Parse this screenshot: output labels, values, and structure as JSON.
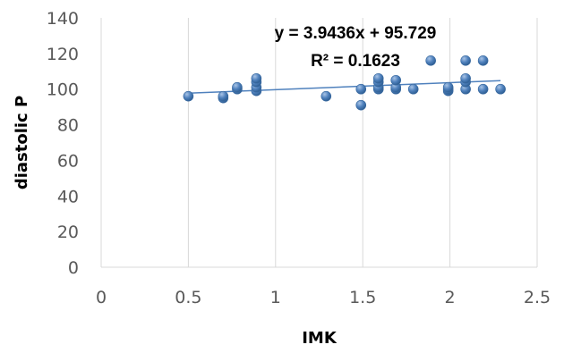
{
  "chart_data": {
    "type": "scatter",
    "xlabel": "IMK",
    "ylabel": "diastolic P",
    "xlim": [
      0,
      2.5
    ],
    "ylim": [
      0,
      140
    ],
    "x_ticks": [
      "0",
      "0.5",
      "1",
      "1.5",
      "2",
      "2.5"
    ],
    "y_ticks": [
      "0",
      "20",
      "40",
      "60",
      "80",
      "100",
      "120",
      "140"
    ],
    "grid": {
      "vertical": true,
      "horizontal": false
    },
    "marker_color": "#4f81bd",
    "trendline_color": "#4f81bd",
    "points": [
      {
        "x": 0.5,
        "y": 96
      },
      {
        "x": 0.7,
        "y": 95
      },
      {
        "x": 0.7,
        "y": 96
      },
      {
        "x": 0.78,
        "y": 100
      },
      {
        "x": 0.78,
        "y": 101
      },
      {
        "x": 0.89,
        "y": 99
      },
      {
        "x": 0.89,
        "y": 101
      },
      {
        "x": 0.89,
        "y": 104
      },
      {
        "x": 0.89,
        "y": 106
      },
      {
        "x": 1.29,
        "y": 96
      },
      {
        "x": 1.49,
        "y": 91
      },
      {
        "x": 1.49,
        "y": 100
      },
      {
        "x": 1.59,
        "y": 100
      },
      {
        "x": 1.59,
        "y": 101
      },
      {
        "x": 1.59,
        "y": 104
      },
      {
        "x": 1.59,
        "y": 106
      },
      {
        "x": 1.69,
        "y": 100
      },
      {
        "x": 1.69,
        "y": 101
      },
      {
        "x": 1.69,
        "y": 105
      },
      {
        "x": 1.79,
        "y": 100
      },
      {
        "x": 1.89,
        "y": 116
      },
      {
        "x": 1.99,
        "y": 99
      },
      {
        "x": 1.99,
        "y": 100
      },
      {
        "x": 1.99,
        "y": 101
      },
      {
        "x": 2.09,
        "y": 100
      },
      {
        "x": 2.09,
        "y": 104
      },
      {
        "x": 2.09,
        "y": 106
      },
      {
        "x": 2.09,
        "y": 116
      },
      {
        "x": 2.19,
        "y": 100
      },
      {
        "x": 2.19,
        "y": 116
      },
      {
        "x": 2.29,
        "y": 100
      }
    ],
    "trendline": {
      "slope": 3.9436,
      "intercept": 95.729,
      "x_range": [
        0.5,
        2.29
      ],
      "equation_label": "y = 3.9436x + 95.729",
      "r2_label": "R² = 0.1623"
    }
  }
}
